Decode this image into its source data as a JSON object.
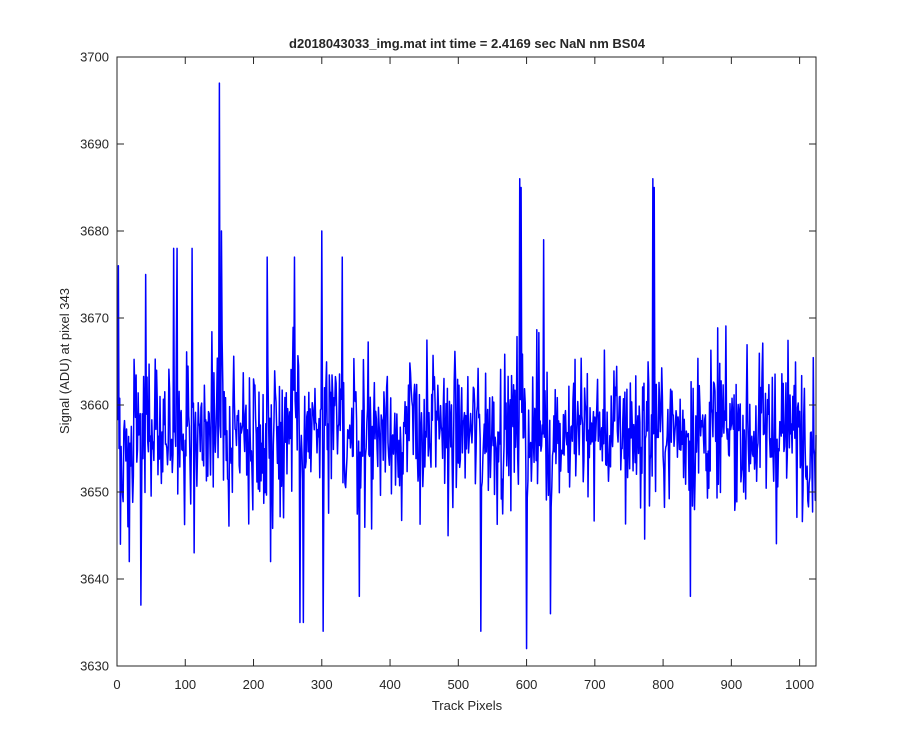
{
  "chart_data": {
    "type": "line",
    "title": "d2018043033_img.mat int time = 2.4169 sec  NaN nm BS04",
    "xlabel": "Track Pixels",
    "ylabel": "Signal (ADU) at pixel 343",
    "xlim": [
      0,
      1024
    ],
    "ylim": [
      3630,
      3700
    ],
    "xticks": [
      0,
      100,
      200,
      300,
      400,
      500,
      600,
      700,
      800,
      900,
      1000
    ],
    "yticks": [
      3630,
      3640,
      3650,
      3660,
      3670,
      3680,
      3690,
      3700
    ],
    "grid": false,
    "legend": "none",
    "series": [
      {
        "color": "#0000ff",
        "x_start": 1,
        "x_step": 1,
        "note_points": [
          [
            2,
            3676
          ],
          [
            5,
            3644
          ],
          [
            18,
            3642
          ],
          [
            35,
            3637
          ],
          [
            42,
            3675
          ],
          [
            83,
            3678
          ],
          [
            88,
            3678
          ],
          [
            110,
            3678
          ],
          [
            113,
            3643
          ],
          [
            150,
            3697
          ],
          [
            153,
            3680
          ],
          [
            220,
            3677
          ],
          [
            225,
            3642
          ],
          [
            260,
            3677
          ],
          [
            268,
            3635
          ],
          [
            273,
            3635
          ],
          [
            300,
            3680
          ],
          [
            302,
            3634
          ],
          [
            330,
            3677
          ],
          [
            355,
            3638
          ],
          [
            533,
            3634
          ],
          [
            590,
            3686
          ],
          [
            592,
            3685
          ],
          [
            600,
            3632
          ],
          [
            625,
            3679
          ],
          [
            635,
            3636
          ],
          [
            785,
            3686
          ],
          [
            787,
            3685
          ],
          [
            840,
            3638
          ]
        ]
      }
    ]
  }
}
